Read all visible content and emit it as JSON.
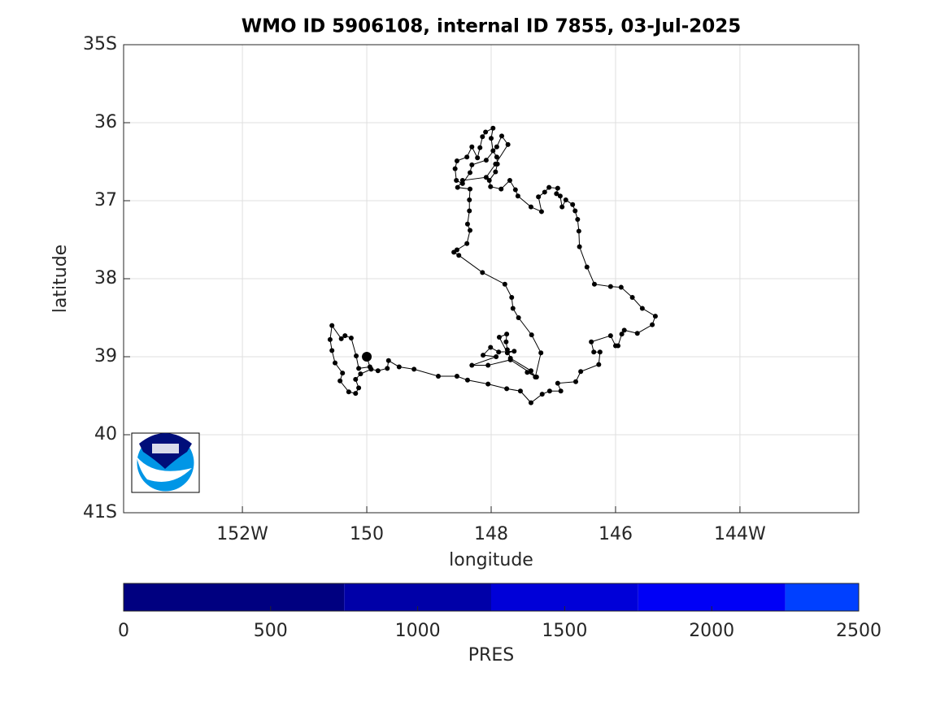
{
  "chart_data": {
    "type": "line",
    "title": "WMO ID 5906108, internal ID 7855, 03-Jul-2025",
    "x_label": "longitude",
    "y_label": "latitude",
    "color": "#000000",
    "grid": true,
    "xlim": [
      -153.91,
      -142.09
    ],
    "xticks": [
      {
        "value": -152,
        "label": "152W"
      },
      {
        "value": -150,
        "label": "150"
      },
      {
        "value": -148,
        "label": "148"
      },
      {
        "value": -146,
        "label": "146"
      },
      {
        "value": -144,
        "label": "144W"
      }
    ],
    "ylim": [
      -41,
      -35
    ],
    "yticks": [
      {
        "value": -35,
        "label": "35S"
      },
      {
        "value": -36,
        "label": "36"
      },
      {
        "value": -37,
        "label": "37"
      },
      {
        "value": -38,
        "label": "38"
      },
      {
        "value": -39,
        "label": "39"
      },
      {
        "value": -40,
        "label": "40"
      },
      {
        "value": -41,
        "label": "41S"
      }
    ],
    "x": [
      -150.0,
      -149.95,
      -150.13,
      -150.17,
      -150.25,
      -150.35,
      -150.41,
      -150.56,
      -150.59,
      -150.56,
      -150.51,
      -150.39,
      -150.43,
      -150.29,
      -150.18,
      -150.13,
      -150.18,
      -150.1,
      -149.93,
      -149.82,
      -149.67,
      -149.65,
      -149.48,
      -149.24,
      -148.85,
      -148.55,
      -148.38,
      -148.05,
      -147.75,
      -147.53,
      -147.36,
      -147.18,
      -147.06,
      -146.88,
      -146.93,
      -146.64,
      -146.56,
      -146.27,
      -146.25,
      -146.35,
      -146.39,
      -146.08,
      -146.0,
      -145.96,
      -145.9,
      -145.86,
      -145.65,
      -145.41,
      -145.36,
      -145.57,
      -145.73,
      -145.91,
      -146.08,
      -146.34,
      -146.46,
      -146.58,
      -146.59,
      -146.61,
      -146.65,
      -146.69,
      -146.8,
      -146.86,
      -146.89,
      -146.95,
      -146.93,
      -147.07,
      -147.14,
      -147.24,
      -147.19,
      -147.36,
      -147.57,
      -147.61,
      -147.7,
      -147.84,
      -148.01,
      -148.03,
      -147.93,
      -147.9,
      -147.91,
      -147.97,
      -148.0,
      -147.97,
      -148.09,
      -148.14,
      -148.18,
      -148.22,
      -148.31,
      -148.39,
      -148.55,
      -148.58,
      -148.56,
      -148.46,
      -148.34,
      -148.31,
      -148.08,
      -147.91,
      -147.83,
      -147.73,
      -147.93,
      -148.08,
      -148.46,
      -148.54,
      -148.34,
      -148.35,
      -148.35,
      -148.38,
      -148.34,
      -148.39,
      -148.55,
      -148.6,
      -148.52,
      -148.14,
      -147.78,
      -147.67,
      -147.65,
      -147.56,
      -147.35,
      -147.2,
      -147.29,
      -147.36,
      -147.69,
      -147.74,
      -147.76,
      -147.75,
      -147.87,
      -147.74,
      -147.63,
      -147.88,
      -148.01,
      -148.13,
      -147.92,
      -148.31,
      -148.05,
      -147.69,
      -147.27,
      -147.42
    ],
    "values": [
      -39.0,
      -39.13,
      -39.15,
      -38.99,
      -38.76,
      -38.73,
      -38.77,
      -38.6,
      -38.78,
      -38.92,
      -39.08,
      -39.21,
      -39.31,
      -39.45,
      -39.47,
      -39.4,
      -39.29,
      -39.22,
      -39.16,
      -39.18,
      -39.15,
      -39.05,
      -39.13,
      -39.16,
      -39.25,
      -39.25,
      -39.3,
      -39.35,
      -39.41,
      -39.44,
      -39.59,
      -39.48,
      -39.44,
      -39.44,
      -39.34,
      -39.32,
      -39.19,
      -39.1,
      -38.94,
      -38.94,
      -38.81,
      -38.73,
      -38.86,
      -38.86,
      -38.71,
      -38.66,
      -38.7,
      -38.59,
      -38.48,
      -38.38,
      -38.24,
      -38.11,
      -38.1,
      -38.07,
      -37.85,
      -37.59,
      -37.39,
      -37.24,
      -37.13,
      -37.05,
      -36.99,
      -37.08,
      -36.94,
      -36.91,
      -36.84,
      -36.83,
      -36.89,
      -36.95,
      -37.14,
      -37.08,
      -36.94,
      -36.86,
      -36.74,
      -36.85,
      -36.82,
      -36.74,
      -36.63,
      -36.53,
      -36.44,
      -36.36,
      -36.2,
      -36.07,
      -36.12,
      -36.18,
      -36.32,
      -36.45,
      -36.31,
      -36.44,
      -36.49,
      -36.59,
      -36.74,
      -36.78,
      -36.64,
      -36.54,
      -36.48,
      -36.31,
      -36.17,
      -36.28,
      -36.53,
      -36.7,
      -36.74,
      -36.83,
      -36.85,
      -36.99,
      -37.13,
      -37.3,
      -37.38,
      -37.55,
      -37.63,
      -37.66,
      -37.7,
      -37.92,
      -38.07,
      -38.24,
      -38.38,
      -38.5,
      -38.72,
      -38.95,
      -39.26,
      -39.18,
      -39.02,
      -38.91,
      -38.81,
      -38.71,
      -38.75,
      -38.95,
      -38.93,
      -38.94,
      -38.88,
      -38.98,
      -39.0,
      -39.11,
      -39.11,
      -39.04,
      -39.26,
      -39.2
    ],
    "colorbar": {
      "label": "PRES",
      "lim": [
        0,
        2500
      ],
      "ticks": [
        0,
        500,
        1000,
        1500,
        2000,
        2500
      ],
      "bounds": [
        0,
        750,
        1250,
        1750,
        2250,
        2500
      ],
      "colors": [
        "#000080",
        "#0000a8",
        "#0000d8",
        "#0000f6",
        "#0040ff"
      ]
    }
  }
}
